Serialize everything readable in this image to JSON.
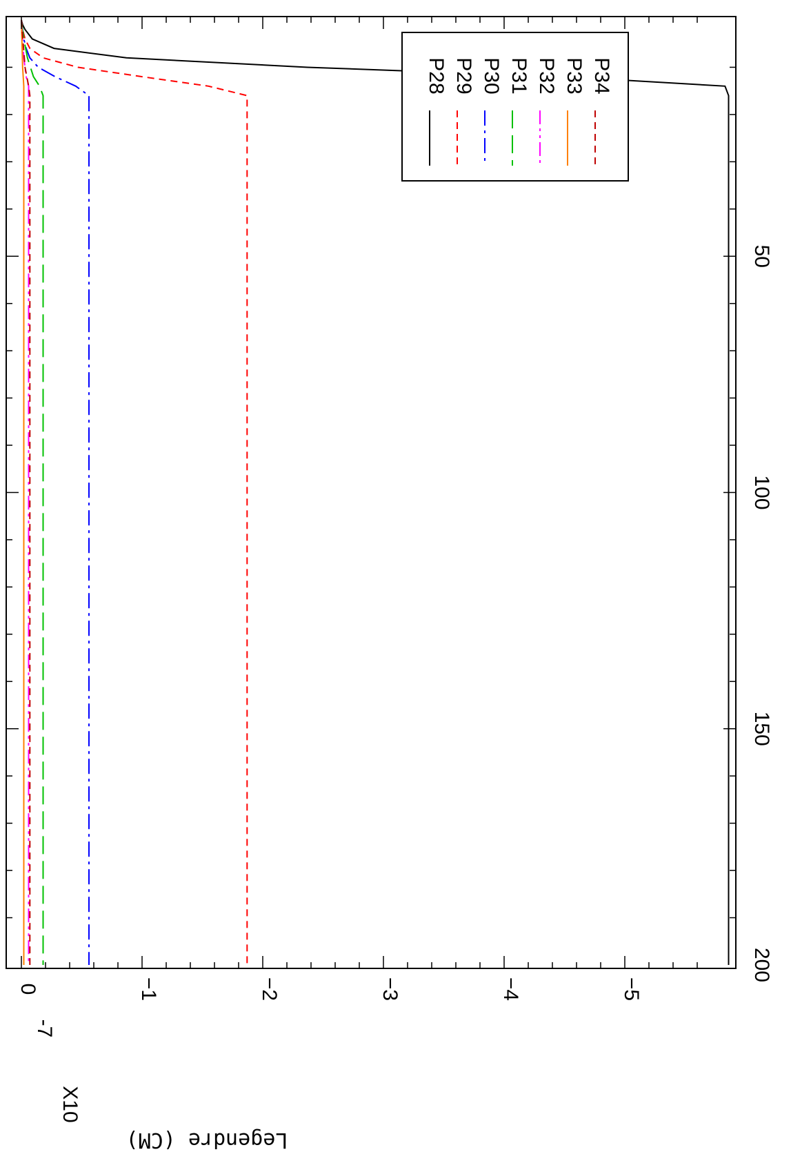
{
  "chart_data": {
    "type": "line",
    "orientation": "rotated-90-cw",
    "title": "",
    "xlabel": "",
    "ylabel": "Legendre (CM)",
    "y_multiplier": "X10",
    "y_multiplier_exp": "-7",
    "xlim": [
      0,
      200
    ],
    "ylim": [
      -6,
      0
    ],
    "x_ticks": [
      50,
      100,
      150,
      200
    ],
    "x_tick_labels": [
      "50",
      "100",
      "150",
      "200"
    ],
    "y_ticks": [
      0,
      -1,
      -2,
      -3,
      -4,
      -5
    ],
    "y_tick_labels": [
      "0",
      "−1",
      "−2",
      "−3",
      "−4",
      "−5"
    ],
    "grid": false,
    "legend_position": "top-right",
    "series": [
      {
        "name": "P28",
        "color": "#000000",
        "dash": "solid",
        "x": [
          0,
          1,
          2,
          4,
          6,
          8,
          10,
          12,
          14,
          16,
          200
        ],
        "y": [
          0,
          -0.01,
          -0.03,
          -0.09,
          -0.27,
          -0.87,
          -2.37,
          -4.5,
          -5.83,
          -5.86,
          -5.86
        ]
      },
      {
        "name": "P29",
        "color": "#ff0000",
        "dash": "dashed",
        "x": [
          0,
          2,
          4,
          6,
          8,
          10,
          12,
          14,
          16,
          200
        ],
        "y": [
          0,
          -0.01,
          -0.03,
          -0.07,
          -0.18,
          -0.47,
          -1.0,
          -1.55,
          -1.87,
          -1.87
        ]
      },
      {
        "name": "P30",
        "color": "#0000ff",
        "dash": "dash-dot",
        "x": [
          0,
          2,
          4,
          6,
          8,
          10,
          12,
          14,
          16,
          200
        ],
        "y": [
          0,
          -0.01,
          -0.02,
          -0.04,
          -0.07,
          -0.14,
          -0.28,
          -0.45,
          -0.56,
          -0.56
        ]
      },
      {
        "name": "P31",
        "color": "#00c000",
        "dash": "long-dash",
        "x": [
          0,
          4,
          8,
          12,
          14,
          16,
          200
        ],
        "y": [
          0,
          -0.02,
          -0.05,
          -0.1,
          -0.15,
          -0.18,
          -0.18
        ]
      },
      {
        "name": "P32",
        "color": "#ff00ff",
        "dash": "dash-dot-dot",
        "x": [
          0,
          8,
          12,
          14,
          16,
          200
        ],
        "y": [
          0,
          -0.02,
          -0.04,
          -0.06,
          -0.06,
          -0.06
        ]
      },
      {
        "name": "P33",
        "color": "#ff8000",
        "dash": "solid",
        "x": [
          0,
          10,
          14,
          16,
          200
        ],
        "y": [
          0,
          -0.01,
          -0.02,
          -0.02,
          -0.02
        ]
      },
      {
        "name": "P34",
        "color": "#c00000",
        "dash": "dashed",
        "x": [
          0,
          10,
          14,
          16,
          200
        ],
        "y": [
          0,
          -0.03,
          -0.06,
          -0.07,
          -0.07
        ]
      }
    ]
  }
}
